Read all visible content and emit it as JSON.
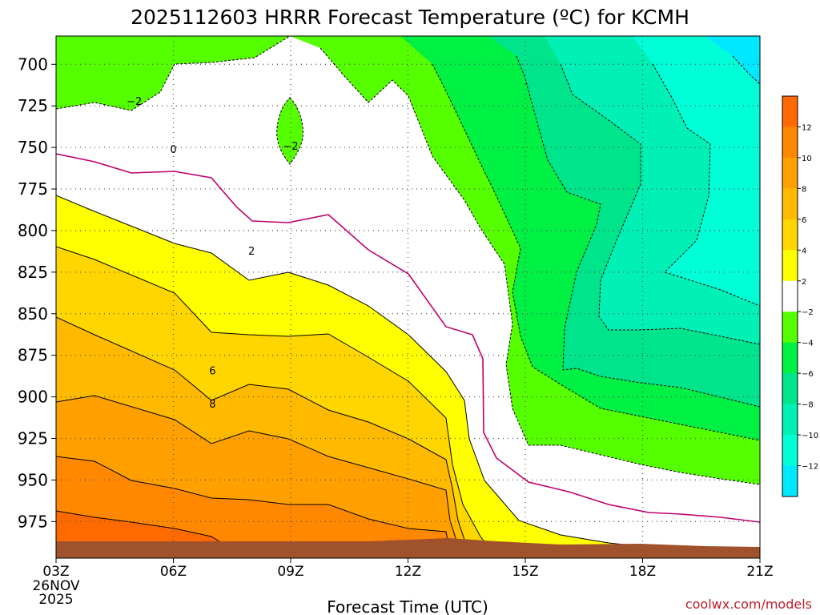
{
  "chart_data": {
    "type": "heatmap",
    "title": "2025112603 HRRR Forecast Temperature (ºC) for KCMH",
    "xlabel": "Forecast Time (UTC)",
    "ylabel": "",
    "credit": "coolwx.com/models",
    "x_ticks": [
      "03Z",
      "06Z",
      "09Z",
      "12Z",
      "15Z",
      "18Z",
      "21Z"
    ],
    "x_first_tick_extra": [
      "26NOV",
      "2025"
    ],
    "y_ticks": [
      "700",
      "725",
      "750",
      "775",
      "800",
      "825",
      "850",
      "875",
      "900",
      "925",
      "950",
      "975"
    ],
    "y_axis_values": [
      700,
      725,
      750,
      775,
      800,
      825,
      850,
      875,
      900,
      925,
      950,
      975
    ],
    "x_range_hours": [
      3,
      21
    ],
    "y_range_hpa": [
      683,
      997
    ],
    "grid": true,
    "colorbar": {
      "tick_labels": [
        "12",
        "10",
        "8",
        "6",
        "4",
        "2",
        "−2",
        "−4",
        "−6",
        "−8",
        "−10",
        "−12"
      ],
      "bins": [
        {
          "range": [
            12,
            14
          ],
          "color": "#ff6a00"
        },
        {
          "range": [
            10,
            12
          ],
          "color": "#ff8800"
        },
        {
          "range": [
            8,
            10
          ],
          "color": "#ffa000"
        },
        {
          "range": [
            6,
            8
          ],
          "color": "#ffba00"
        },
        {
          "range": [
            4,
            6
          ],
          "color": "#ffd600"
        },
        {
          "range": [
            2,
            4
          ],
          "color": "#ffff00"
        },
        {
          "range": [
            -2,
            2
          ],
          "color": "#ffffff"
        },
        {
          "range": [
            -4,
            -2
          ],
          "color": "#55ff00"
        },
        {
          "range": [
            -6,
            -4
          ],
          "color": "#00f044"
        },
        {
          "range": [
            -8,
            -6
          ],
          "color": "#00e58c"
        },
        {
          "range": [
            -10,
            -8
          ],
          "color": "#00f0b6"
        },
        {
          "range": [
            -12,
            -10
          ],
          "color": "#00ffd6"
        },
        {
          "range": [
            -14,
            -12
          ],
          "color": "#00e8ff"
        }
      ]
    },
    "contour_labels": [
      {
        "value": "−2",
        "hour": 5.0,
        "hpa": 722
      },
      {
        "value": "−2",
        "hour": 9.0,
        "hpa": 749
      },
      {
        "value": "0",
        "hour": 6.0,
        "hpa": 751
      },
      {
        "value": "2",
        "hour": 8.0,
        "hpa": 812
      },
      {
        "value": "6",
        "hour": 7.0,
        "hpa": 884
      },
      {
        "value": "8",
        "hour": 7.0,
        "hpa": 904
      }
    ],
    "ground_color": "#a0522d",
    "zero_isotherm_color": "#c0006a"
  }
}
